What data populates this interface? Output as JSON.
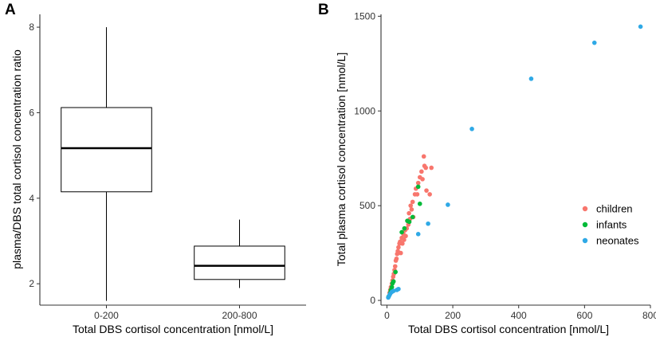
{
  "panels": {
    "a_label": "A",
    "b_label": "B"
  },
  "chart_data": [
    {
      "type": "box",
      "panel": "A",
      "title": "",
      "xlabel": "Total DBS cortisol concentration [nmol/L]",
      "ylabel": "plasma/DBS total cortisol concentration ratio",
      "categories": [
        "0-200",
        "200-800"
      ],
      "ylim": [
        1.5,
        8.3
      ],
      "yticks": [
        2,
        4,
        6,
        8
      ],
      "boxes": [
        {
          "category": "0-200",
          "min": 1.6,
          "q1": 4.15,
          "median": 5.17,
          "q3": 6.12,
          "max": 8.0
        },
        {
          "category": "200-800",
          "min": 1.9,
          "q1": 2.1,
          "median": 2.42,
          "q3": 2.88,
          "max": 3.5
        }
      ],
      "grid": false,
      "colors": {
        "box_fill": "#ffffff",
        "stroke": "#000000",
        "axis": "#333333"
      }
    },
    {
      "type": "scatter",
      "panel": "B",
      "title": "",
      "xlabel": "Total DBS cortisol concentration [nmol/L]",
      "ylabel": "Total plasma cortisol concentration [nmol/L]",
      "xlim": [
        -18,
        800
      ],
      "ylim": [
        -25,
        1510
      ],
      "xticks": [
        0,
        200,
        400,
        600,
        800
      ],
      "yticks": [
        0,
        500,
        1000,
        1500
      ],
      "grid": false,
      "legend_position": "right",
      "series": [
        {
          "name": "children",
          "color": "#F8766D",
          "points": [
            [
              8,
              40
            ],
            [
              10,
              55
            ],
            [
              12,
              70
            ],
            [
              15,
              88
            ],
            [
              17,
              105
            ],
            [
              19,
              125
            ],
            [
              21,
              140
            ],
            [
              23,
              160
            ],
            [
              25,
              180
            ],
            [
              27,
              210
            ],
            [
              29,
              220
            ],
            [
              31,
              245
            ],
            [
              33,
              260
            ],
            [
              35,
              280
            ],
            [
              38,
              300
            ],
            [
              40,
              310
            ],
            [
              42,
              250
            ],
            [
              45,
              330
            ],
            [
              47,
              300
            ],
            [
              50,
              350
            ],
            [
              52,
              320
            ],
            [
              55,
              370
            ],
            [
              57,
              340
            ],
            [
              60,
              380
            ],
            [
              62,
              420
            ],
            [
              65,
              400
            ],
            [
              67,
              460
            ],
            [
              70,
              430
            ],
            [
              72,
              500
            ],
            [
              75,
              480
            ],
            [
              78,
              520
            ],
            [
              80,
              440
            ],
            [
              85,
              560
            ],
            [
              88,
              590
            ],
            [
              92,
              560
            ],
            [
              95,
              620
            ],
            [
              100,
              650
            ],
            [
              105,
              680
            ],
            [
              108,
              640
            ],
            [
              112,
              760
            ],
            [
              114,
              710
            ],
            [
              118,
              700
            ],
            [
              120,
              580
            ],
            [
              130,
              560
            ],
            [
              135,
              700
            ]
          ]
        },
        {
          "name": "infants",
          "color": "#00BA38",
          "points": [
            [
              5,
              20
            ],
            [
              10,
              40
            ],
            [
              12,
              55
            ],
            [
              15,
              70
            ],
            [
              17,
              90
            ],
            [
              20,
              100
            ],
            [
              26,
              150
            ],
            [
              45,
              360
            ],
            [
              53,
              380
            ],
            [
              62,
              420
            ],
            [
              68,
              415
            ],
            [
              78,
              440
            ],
            [
              95,
              600
            ],
            [
              100,
              510
            ]
          ]
        },
        {
          "name": "neonates",
          "color": "#2FA9E6",
          "points": [
            [
              4,
              15
            ],
            [
              7,
              25
            ],
            [
              10,
              35
            ],
            [
              15,
              45
            ],
            [
              20,
              50
            ],
            [
              30,
              55
            ],
            [
              35,
              60
            ],
            [
              95,
              350
            ],
            [
              125,
              405
            ],
            [
              185,
              505
            ],
            [
              258,
              905
            ],
            [
              438,
              1170
            ],
            [
              630,
              1360
            ],
            [
              770,
              1445
            ]
          ]
        }
      ]
    }
  ]
}
